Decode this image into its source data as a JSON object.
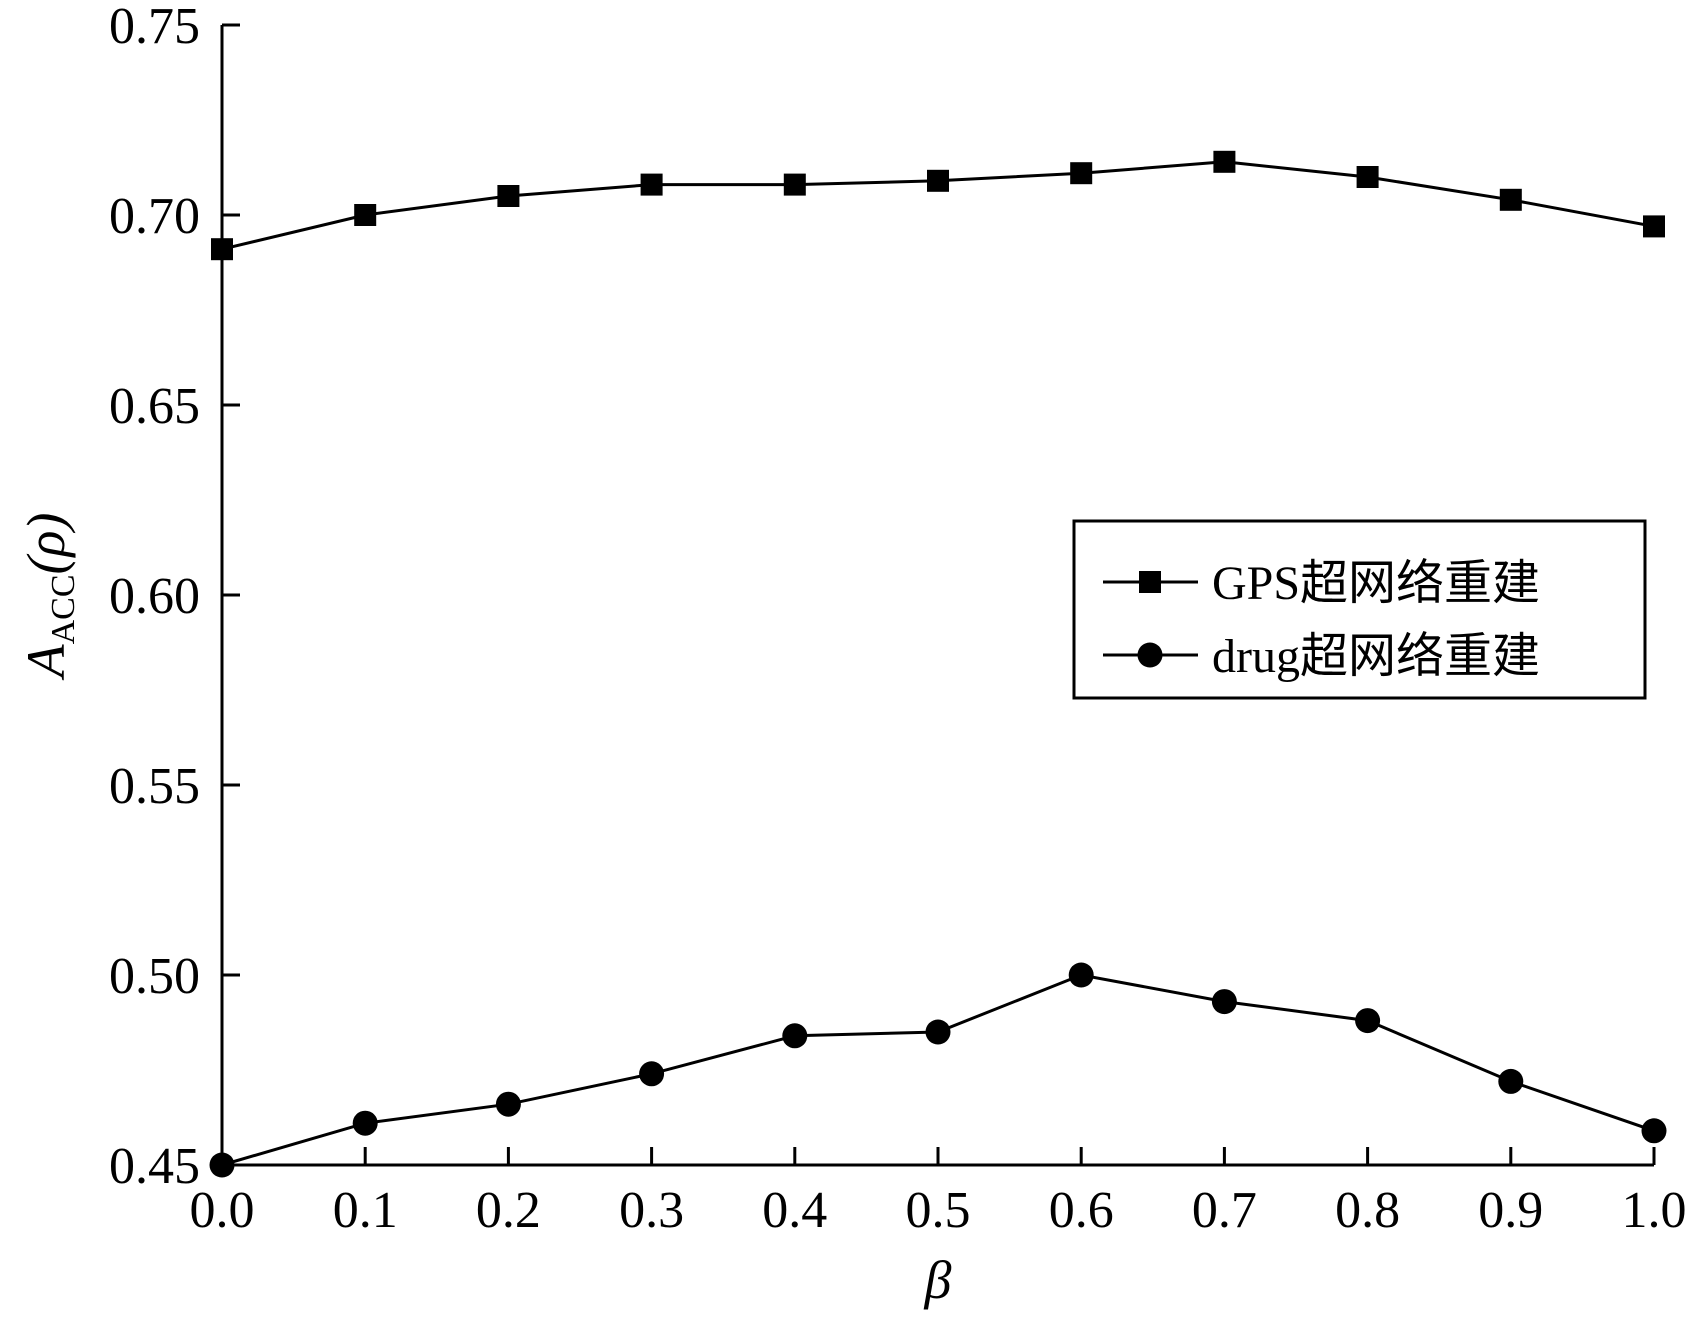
{
  "chart_data": {
    "type": "line",
    "xlabel": "β",
    "ylabel": {
      "main": "A",
      "sub": "ACC",
      "suffix": "(ρ)"
    },
    "x": [
      0.0,
      0.1,
      0.2,
      0.3,
      0.4,
      0.5,
      0.6,
      0.7,
      0.8,
      0.9,
      1.0
    ],
    "x_tick_labels": [
      "0.0",
      "0.1",
      "0.2",
      "0.3",
      "0.4",
      "0.5",
      "0.6",
      "0.7",
      "0.8",
      "0.9",
      "1.0"
    ],
    "y_tick_values": [
      0.45,
      0.5,
      0.55,
      0.6,
      0.65,
      0.7,
      0.75
    ],
    "y_tick_labels": [
      "0.45",
      "0.50",
      "0.55",
      "0.60",
      "0.65",
      "0.70",
      "0.75"
    ],
    "xlim": [
      0.0,
      1.0
    ],
    "ylim": [
      0.45,
      0.75
    ],
    "grid": false,
    "legend_position": "center-right",
    "series": [
      {
        "name": "GPS超网络重建",
        "marker": "square",
        "color": "#000000",
        "values": [
          0.691,
          0.7,
          0.705,
          0.708,
          0.708,
          0.709,
          0.711,
          0.714,
          0.71,
          0.704,
          0.697
        ]
      },
      {
        "name": "drug超网络重建",
        "marker": "circle",
        "color": "#000000",
        "values": [
          0.45,
          0.461,
          0.466,
          0.474,
          0.484,
          0.485,
          0.5,
          0.493,
          0.488,
          0.472,
          0.459
        ]
      }
    ]
  }
}
